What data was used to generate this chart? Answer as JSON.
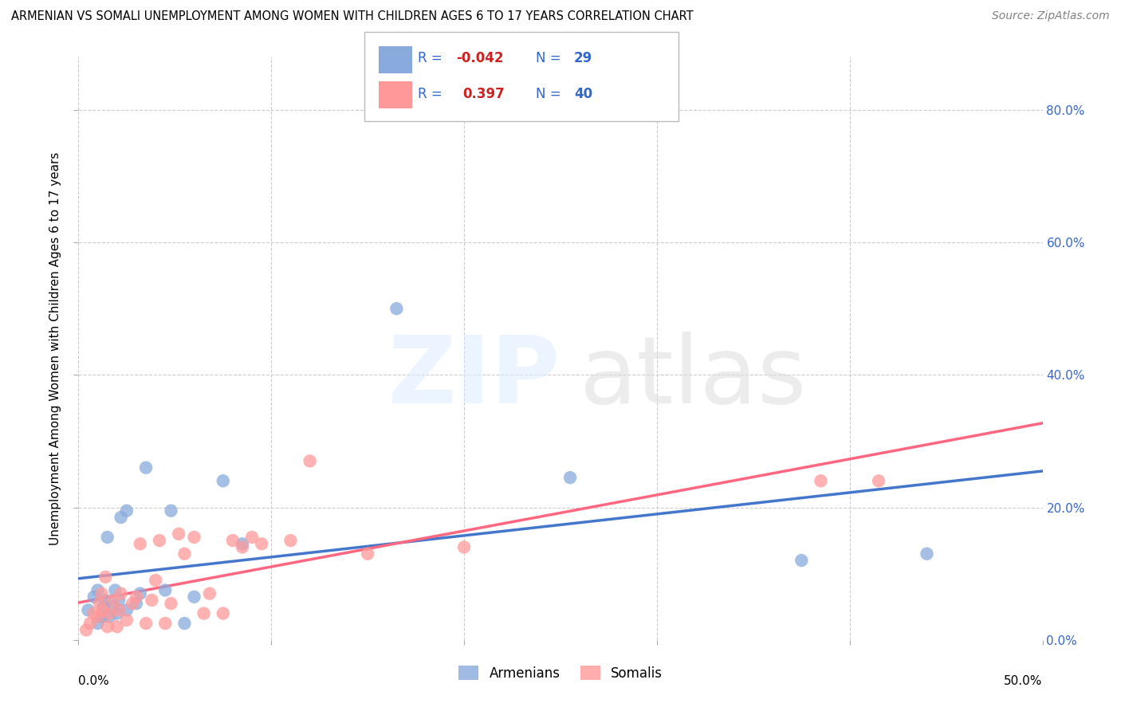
{
  "title": "ARMENIAN VS SOMALI UNEMPLOYMENT AMONG WOMEN WITH CHILDREN AGES 6 TO 17 YEARS CORRELATION CHART",
  "source": "Source: ZipAtlas.com",
  "ylabel": "Unemployment Among Women with Children Ages 6 to 17 years",
  "xlim": [
    0.0,
    0.5
  ],
  "ylim": [
    0.0,
    0.88
  ],
  "armenian_R": -0.042,
  "armenian_N": 29,
  "somali_R": 0.397,
  "somali_N": 40,
  "armenian_color": "#88AADD",
  "somali_color": "#FF9999",
  "armenian_line_color": "#4477CC",
  "somali_line_color": "#FF6680",
  "armenian_x": [
    0.005,
    0.008,
    0.01,
    0.01,
    0.012,
    0.013,
    0.014,
    0.015,
    0.016,
    0.018,
    0.019,
    0.02,
    0.021,
    0.022,
    0.025,
    0.025,
    0.03,
    0.032,
    0.035,
    0.045,
    0.048,
    0.055,
    0.06,
    0.075,
    0.085,
    0.165,
    0.255,
    0.375,
    0.44
  ],
  "armenian_y": [
    0.045,
    0.065,
    0.025,
    0.075,
    0.035,
    0.05,
    0.06,
    0.155,
    0.035,
    0.05,
    0.075,
    0.04,
    0.06,
    0.185,
    0.045,
    0.195,
    0.055,
    0.07,
    0.26,
    0.075,
    0.195,
    0.025,
    0.065,
    0.24,
    0.145,
    0.5,
    0.245,
    0.12,
    0.13
  ],
  "somali_x": [
    0.004,
    0.006,
    0.008,
    0.01,
    0.011,
    0.012,
    0.013,
    0.014,
    0.015,
    0.016,
    0.018,
    0.02,
    0.021,
    0.022,
    0.025,
    0.028,
    0.03,
    0.032,
    0.035,
    0.038,
    0.04,
    0.042,
    0.045,
    0.048,
    0.052,
    0.055,
    0.06,
    0.065,
    0.068,
    0.075,
    0.08,
    0.085,
    0.09,
    0.095,
    0.11,
    0.12,
    0.15,
    0.2,
    0.385,
    0.415
  ],
  "somali_y": [
    0.015,
    0.025,
    0.04,
    0.035,
    0.055,
    0.07,
    0.045,
    0.095,
    0.02,
    0.04,
    0.06,
    0.02,
    0.045,
    0.07,
    0.03,
    0.055,
    0.065,
    0.145,
    0.025,
    0.06,
    0.09,
    0.15,
    0.025,
    0.055,
    0.16,
    0.13,
    0.155,
    0.04,
    0.07,
    0.04,
    0.15,
    0.14,
    0.155,
    0.145,
    0.15,
    0.27,
    0.13,
    0.14,
    0.24,
    0.24
  ]
}
